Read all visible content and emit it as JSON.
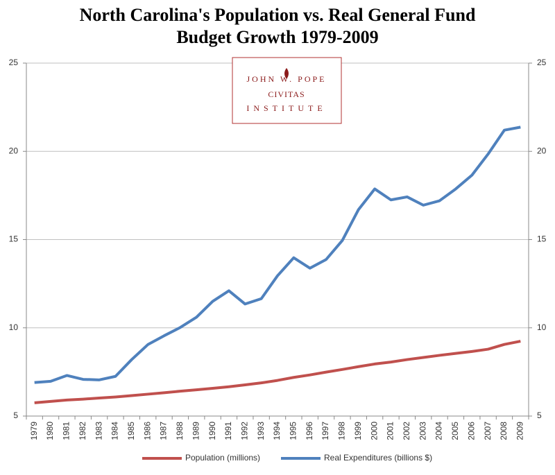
{
  "chart_data": {
    "type": "line",
    "title": [
      "North Carolina's Population vs. Real General Fund",
      "Budget Growth 1979-2009"
    ],
    "logo": {
      "top": "JOHN W. POPE",
      "main": "CIVITAS",
      "bottom": "INSTITUTE"
    },
    "categories": [
      "1979",
      "1980",
      "1981",
      "1982",
      "1983",
      "1984",
      "1985",
      "1986",
      "1987",
      "1988",
      "1989",
      "1990",
      "1991",
      "1992",
      "1993",
      "1994",
      "1995",
      "1996",
      "1997",
      "1998",
      "1999",
      "2000",
      "2001",
      "2002",
      "2003",
      "2004",
      "2005",
      "2006",
      "2007",
      "2008",
      "2009"
    ],
    "series": [
      {
        "name": "Population (millions)",
        "color": "#c0504d",
        "axis": "y",
        "values": [
          5.75,
          5.83,
          5.91,
          5.96,
          6.02,
          6.08,
          6.16,
          6.24,
          6.32,
          6.41,
          6.49,
          6.57,
          6.66,
          6.77,
          6.88,
          7.02,
          7.19,
          7.33,
          7.49,
          7.64,
          7.8,
          7.95,
          8.06,
          8.2,
          8.32,
          8.44,
          8.55,
          8.66,
          8.79,
          9.06,
          9.24
        ]
      },
      {
        "name": "Real Expenditures (billions $)",
        "color": "#4f81bd",
        "axis": "y2",
        "values": [
          6.9,
          6.97,
          7.3,
          7.08,
          7.05,
          7.25,
          8.2,
          9.05,
          9.55,
          10.02,
          10.6,
          11.5,
          12.1,
          11.35,
          11.65,
          12.95,
          13.97,
          13.38,
          13.87,
          14.95,
          16.7,
          17.87,
          17.25,
          17.42,
          16.95,
          17.2,
          17.87,
          18.65,
          19.85,
          21.2,
          21.37
        ]
      }
    ],
    "ylim": [
      5,
      25
    ],
    "yticks": [
      5,
      10,
      15,
      20,
      25
    ],
    "y2lim": [
      5,
      25
    ],
    "y2ticks": [
      5,
      10,
      15,
      20,
      25
    ],
    "grid": true
  }
}
